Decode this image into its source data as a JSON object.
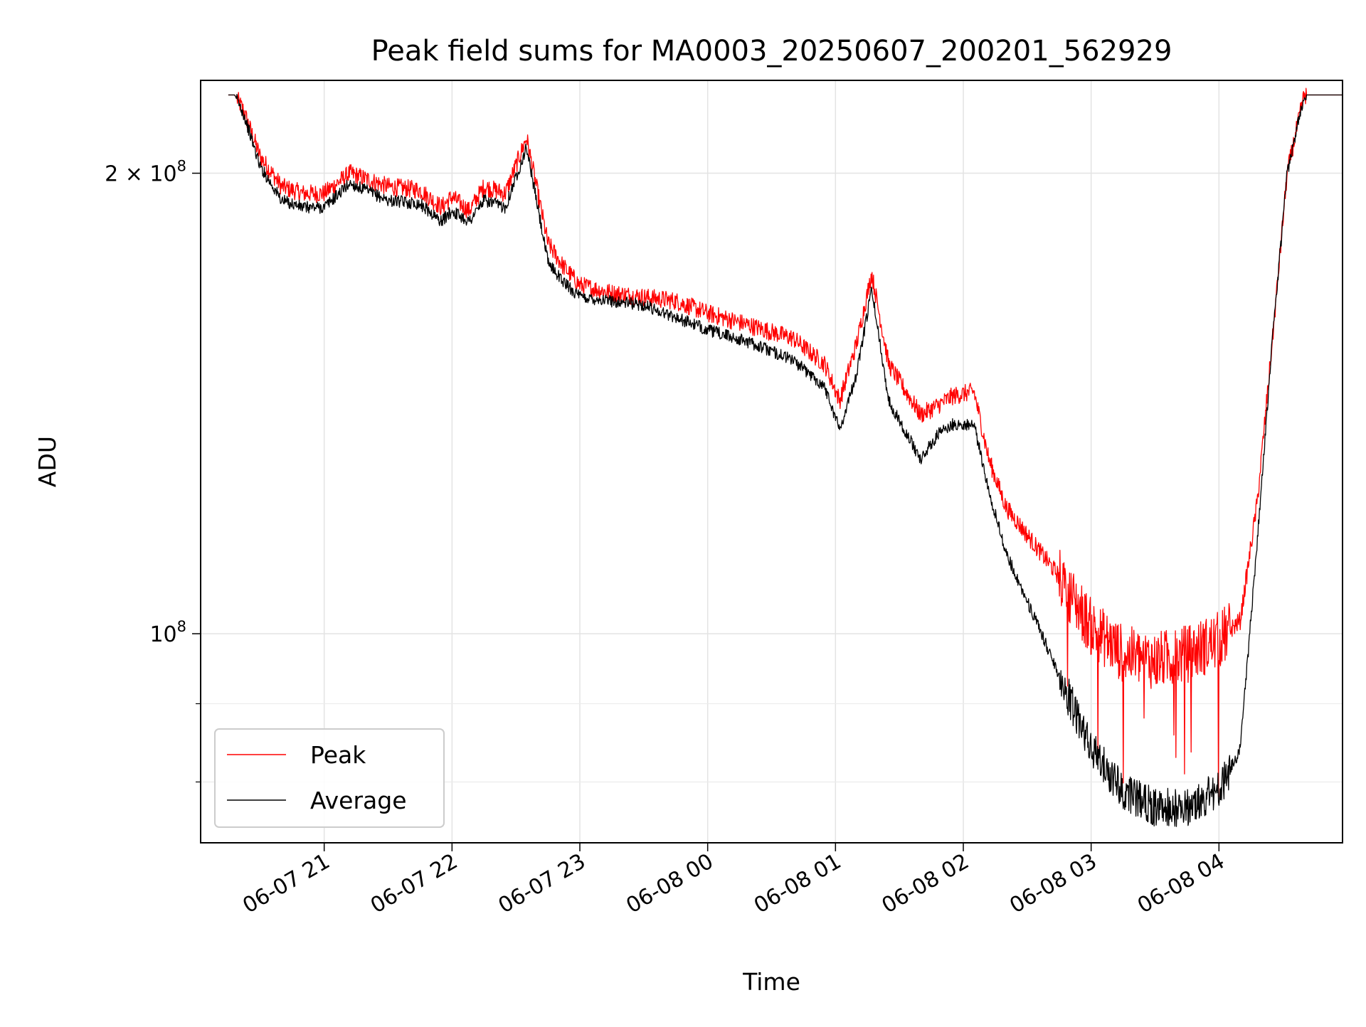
{
  "chart_data": {
    "type": "line",
    "title": "Peak field sums for MA0003_20250607_200201_562929",
    "xlabel": "Time",
    "ylabel": "ADU",
    "yscale": "log",
    "xlim": [
      "2025-06-07 20:02",
      "2025-06-08 04:58"
    ],
    "ylim": [
      73000000,
      230000000
    ],
    "grid": true,
    "legend_position": "lower-left",
    "x_ticks": [
      {
        "value": "2025-06-07 21:00",
        "label": "06-07 21"
      },
      {
        "value": "2025-06-07 22:00",
        "label": "06-07 22"
      },
      {
        "value": "2025-06-07 23:00",
        "label": "06-07 23"
      },
      {
        "value": "2025-06-08 00:00",
        "label": "06-08 00"
      },
      {
        "value": "2025-06-08 01:00",
        "label": "06-08 01"
      },
      {
        "value": "2025-06-08 02:00",
        "label": "06-08 02"
      },
      {
        "value": "2025-06-08 03:00",
        "label": "06-08 03"
      },
      {
        "value": "2025-06-08 04:00",
        "label": "06-08 04"
      }
    ],
    "y_ticks": [
      {
        "value": 200000000,
        "mantissa": "2",
        "times": "×",
        "base": "10",
        "exp": "8"
      },
      {
        "value": 100000000,
        "mantissa": "",
        "times": "",
        "base": "10",
        "exp": "8"
      }
    ],
    "series": [
      {
        "name": "Peak",
        "color": "#ff0000",
        "noise": 0.006,
        "x": [
          "2025-06-07 20:15",
          "2025-06-07 20:18",
          "2025-06-07 20:22",
          "2025-06-07 20:30",
          "2025-06-07 20:40",
          "2025-06-07 20:50",
          "2025-06-07 21:00",
          "2025-06-07 21:12",
          "2025-06-07 21:30",
          "2025-06-07 21:45",
          "2025-06-07 21:55",
          "2025-06-07 22:00",
          "2025-06-07 22:08",
          "2025-06-07 22:15",
          "2025-06-07 22:25",
          "2025-06-07 22:35",
          "2025-06-07 22:45",
          "2025-06-07 22:52",
          "2025-06-07 23:00",
          "2025-06-07 23:15",
          "2025-06-07 23:30",
          "2025-06-07 23:45",
          "2025-06-08 00:00",
          "2025-06-08 00:20",
          "2025-06-08 00:40",
          "2025-06-08 00:55",
          "2025-06-08 01:02",
          "2025-06-08 01:10",
          "2025-06-08 01:17",
          "2025-06-08 01:25",
          "2025-06-08 01:40",
          "2025-06-08 01:48",
          "2025-06-08 01:55",
          "2025-06-08 02:05",
          "2025-06-08 02:12",
          "2025-06-08 02:20",
          "2025-06-08 02:30",
          "2025-06-08 02:45",
          "2025-06-08 03:00",
          "2025-06-08 03:15",
          "2025-06-08 03:30",
          "2025-06-08 03:45",
          "2025-06-08 04:00",
          "2025-06-08 04:10",
          "2025-06-08 04:18",
          "2025-06-08 04:25",
          "2025-06-08 04:32",
          "2025-06-08 04:40",
          "2025-06-08 04:58"
        ],
        "y": [
          225000000,
          225000000,
          220000000,
          205000000,
          196000000,
          194000000,
          194000000,
          200000000,
          196000000,
          195000000,
          190000000,
          193000000,
          189000000,
          196000000,
          194000000,
          211000000,
          180000000,
          174000000,
          169000000,
          167000000,
          166000000,
          165000000,
          162000000,
          159000000,
          156000000,
          150000000,
          142000000,
          155000000,
          172000000,
          150000000,
          139000000,
          141000000,
          143000000,
          144000000,
          130000000,
          121000000,
          116000000,
          109000000,
          101000000,
          97000000,
          96000000,
          97000000,
          99000000,
          102000000,
          122000000,
          155000000,
          200000000,
          225000000,
          225000000
        ]
      },
      {
        "name": "Average",
        "color": "#000000",
        "noise": 0.004,
        "x": [
          "2025-06-07 20:15",
          "2025-06-07 20:18",
          "2025-06-07 20:22",
          "2025-06-07 20:30",
          "2025-06-07 20:40",
          "2025-06-07 20:50",
          "2025-06-07 21:00",
          "2025-06-07 21:12",
          "2025-06-07 21:30",
          "2025-06-07 21:45",
          "2025-06-07 21:55",
          "2025-06-07 22:00",
          "2025-06-07 22:08",
          "2025-06-07 22:15",
          "2025-06-07 22:25",
          "2025-06-07 22:35",
          "2025-06-07 22:45",
          "2025-06-07 22:52",
          "2025-06-07 23:00",
          "2025-06-07 23:15",
          "2025-06-07 23:30",
          "2025-06-07 23:45",
          "2025-06-08 00:00",
          "2025-06-08 00:20",
          "2025-06-08 00:40",
          "2025-06-08 00:55",
          "2025-06-08 01:02",
          "2025-06-08 01:10",
          "2025-06-08 01:17",
          "2025-06-08 01:25",
          "2025-06-08 01:40",
          "2025-06-08 01:48",
          "2025-06-08 01:55",
          "2025-06-08 02:05",
          "2025-06-08 02:12",
          "2025-06-08 02:20",
          "2025-06-08 02:30",
          "2025-06-08 02:45",
          "2025-06-08 03:00",
          "2025-06-08 03:15",
          "2025-06-08 03:30",
          "2025-06-08 03:45",
          "2025-06-08 04:00",
          "2025-06-08 04:10",
          "2025-06-08 04:18",
          "2025-06-08 04:25",
          "2025-06-08 04:32",
          "2025-06-08 04:40",
          "2025-06-08 04:58"
        ],
        "y": [
          225000000,
          225000000,
          219000000,
          202000000,
          192000000,
          190000000,
          190000000,
          197000000,
          192000000,
          191000000,
          186000000,
          189000000,
          186000000,
          192000000,
          190000000,
          208000000,
          175000000,
          170000000,
          166000000,
          165000000,
          164000000,
          161000000,
          158000000,
          155000000,
          151000000,
          145000000,
          136000000,
          148000000,
          168000000,
          142000000,
          130000000,
          135000000,
          137000000,
          137000000,
          124000000,
          113000000,
          105000000,
          94000000,
          84000000,
          79000000,
          77000000,
          77000000,
          79000000,
          84000000,
          115000000,
          155000000,
          200000000,
          225000000,
          225000000
        ]
      }
    ]
  }
}
